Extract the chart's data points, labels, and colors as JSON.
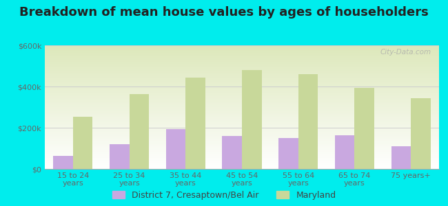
{
  "title": "Breakdown of mean house values by ages of householders",
  "categories": [
    "15 to 24\nyears",
    "25 to 34\nyears",
    "35 to 44\nyears",
    "45 to 54\nyears",
    "55 to 64\nyears",
    "65 to 74\nyears",
    "75 years+"
  ],
  "district_values": [
    65000,
    120000,
    195000,
    160000,
    150000,
    163000,
    110000
  ],
  "maryland_values": [
    255000,
    365000,
    445000,
    480000,
    460000,
    395000,
    345000
  ],
  "district_color": "#c9a8e0",
  "maryland_color": "#c8d89a",
  "background_color": "#00eded",
  "ylim": [
    0,
    600000
  ],
  "yticks": [
    0,
    200000,
    400000,
    600000
  ],
  "ytick_labels": [
    "$0",
    "$200k",
    "$400k",
    "$600k"
  ],
  "legend_label_district": "District 7, Cresaptown/Bel Air",
  "legend_label_maryland": "Maryland",
  "bar_width": 0.35,
  "watermark": "City-Data.com",
  "title_fontsize": 13,
  "tick_fontsize": 8,
  "legend_fontsize": 9
}
